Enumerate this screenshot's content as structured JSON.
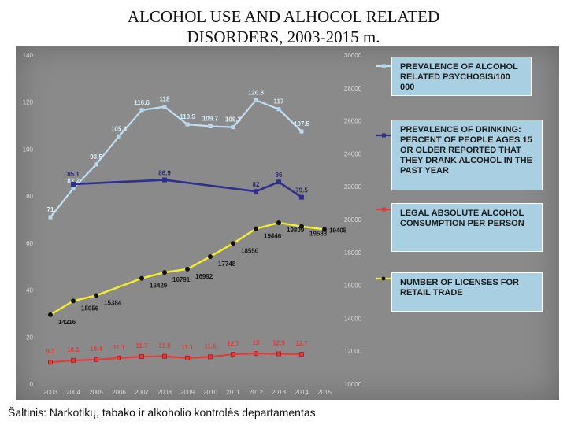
{
  "title_line1": "ALCOHOL USE AND ALHOCOL RELATED",
  "title_line2": "DISORDERS, 2003-2015 m.",
  "footnote": "Šaltinis: Narkotikų, tabako ir alkoholio kontrolės departamentas",
  "chart_data": {
    "type": "line",
    "x": [
      "2003",
      "2004",
      "2005",
      "2006",
      "2007",
      "2008",
      "2009",
      "2010",
      "2011",
      "2012",
      "2013",
      "2014",
      "2015"
    ],
    "left_axis": {
      "ylim": [
        0,
        140
      ],
      "ticks": [
        0,
        20,
        40,
        60,
        80,
        100,
        120,
        140
      ]
    },
    "right_axis": {
      "ylim": [
        10000,
        30000
      ],
      "ticks": [
        10000,
        12000,
        14000,
        16000,
        18000,
        20000,
        22000,
        24000,
        26000,
        28000,
        30000
      ]
    },
    "grid": false,
    "legend_position": "right",
    "series": [
      {
        "name": "PREVALENCE  OF ALCOHOL RELATED PSYCHOSIS/100 000",
        "axis": "left",
        "color": "#bfe0f2",
        "values": [
          71,
          83.2,
          93.5,
          105.4,
          116.6,
          118,
          110.5,
          109.7,
          109.3,
          120.8,
          117,
          107.5,
          null
        ],
        "labels": [
          "71",
          "83.2",
          "93.5",
          "105.4",
          "116.6",
          "118",
          "110.5",
          "109.7",
          "109.3",
          "120.8",
          "117",
          "107.5",
          ""
        ]
      },
      {
        "name": "PREVALENCE OF DRINKING: PERCENT OF PEOPLE AGES 15 OR OLDER REPORTED THAT THEY DRANK ALCOHOL IN THE PAST YEAR",
        "axis": "left",
        "color": "#2e2f8f",
        "values": [
          null,
          85.1,
          null,
          null,
          null,
          86.9,
          null,
          null,
          null,
          82,
          86,
          79.5,
          null
        ],
        "labels": [
          "",
          "85.1",
          "",
          "",
          "",
          "86.9",
          "",
          "",
          "",
          "82",
          "86",
          "79.5",
          ""
        ]
      },
      {
        "name": "LEGAL ABSOLUTE ALCOHOL CONSUMPTION PER PERSON",
        "axis": "left",
        "color": "#e23b3b",
        "values": [
          9.3,
          10.1,
          10.4,
          11.1,
          11.7,
          11.8,
          11.1,
          11.6,
          12.7,
          13,
          12.9,
          12.7,
          null
        ],
        "labels": [
          "9.3",
          "10.1",
          "10.4",
          "11.1",
          "11.7",
          "11.8",
          "11.1",
          "11.6",
          "12.7",
          "13",
          "12.9",
          "12.7",
          ""
        ]
      },
      {
        "name": "NUMBER OF  LICENSES FOR RETAIL  TRADE",
        "axis": "right",
        "color": "#f2ee2a",
        "values": [
          14216,
          15056,
          15384,
          null,
          16429,
          16791,
          16992,
          17748,
          18550,
          19446,
          19809,
          19583,
          19405
        ],
        "labels": [
          "14216",
          "15056",
          "15384",
          "",
          "16429",
          "16791",
          "16992",
          "17748",
          "18550",
          "19446",
          "19809",
          "19583",
          "19405"
        ]
      }
    ],
    "legend_entries": [
      "PREVALENCE  OF ALCOHOL RELATED PSYCHOSIS/100 000",
      "PREVALENCE OF DRINKING: PERCENT OF PEOPLE AGES 15 OR OLDER REPORTED THAT THEY DRANK ALCOHOL IN THE PAST YEAR",
      "LEGAL ABSOLUTE ALCOHOL CONSUMPTION PER PERSON",
      "NUMBER OF  LICENSES FOR RETAIL  TRADE"
    ]
  }
}
